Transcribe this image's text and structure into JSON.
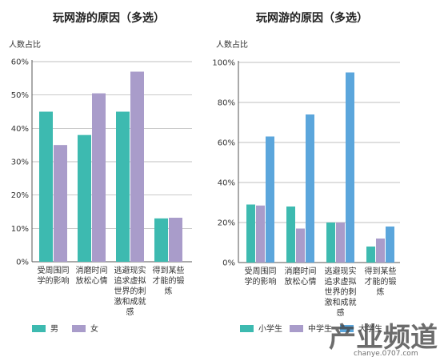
{
  "chart_data": [
    {
      "type": "bar",
      "title": "玩网游的原因（多选）",
      "ylabel": "人数占比",
      "xlabel": "",
      "ylim": [
        0,
        60
      ],
      "yticks": [
        "0%",
        "10%",
        "20%",
        "30%",
        "40%",
        "50%",
        "60%"
      ],
      "grid": true,
      "legend_position": "bottom",
      "categories": [
        [
          "受周围同",
          "学的影响"
        ],
        [
          "消磨时间",
          "放松心情"
        ],
        [
          "逃避现实",
          "追求虚拟",
          "世界的刺",
          "激和成就",
          "感"
        ],
        [
          "得到某些",
          "才能的锻",
          "炼"
        ]
      ],
      "series": [
        {
          "name": "男",
          "color": "#3dbab0",
          "values": [
            45,
            38,
            45,
            13
          ]
        },
        {
          "name": "女",
          "color": "#a99cca",
          "values": [
            35,
            50.5,
            57,
            13.2
          ]
        }
      ]
    },
    {
      "type": "bar",
      "title": "玩网游的原因（多选）",
      "ylabel": "人数占比",
      "xlabel": "",
      "ylim": [
        0,
        100
      ],
      "yticks": [
        "0%",
        "20%",
        "40%",
        "60%",
        "80%",
        "100%"
      ],
      "grid": true,
      "legend_position": "bottom",
      "categories": [
        [
          "受周围同",
          "学的影响"
        ],
        [
          "消磨时间",
          "放松心情"
        ],
        [
          "逃避现实",
          "追求虚拟",
          "世界的刺",
          "激和成就",
          "感"
        ],
        [
          "得到某些",
          "才能的锻",
          "炼"
        ]
      ],
      "series": [
        {
          "name": "小学生",
          "color": "#3dbab0",
          "values": [
            29,
            28,
            20,
            8
          ]
        },
        {
          "name": "中学生",
          "color": "#a99cca",
          "values": [
            28.5,
            17,
            20,
            12
          ]
        },
        {
          "name": "大学生",
          "color": "#5ba6dc",
          "values": [
            63,
            74,
            95,
            18
          ]
        }
      ]
    }
  ],
  "watermark": {
    "main": "产业频道",
    "sub": "chanye.0707.com"
  }
}
